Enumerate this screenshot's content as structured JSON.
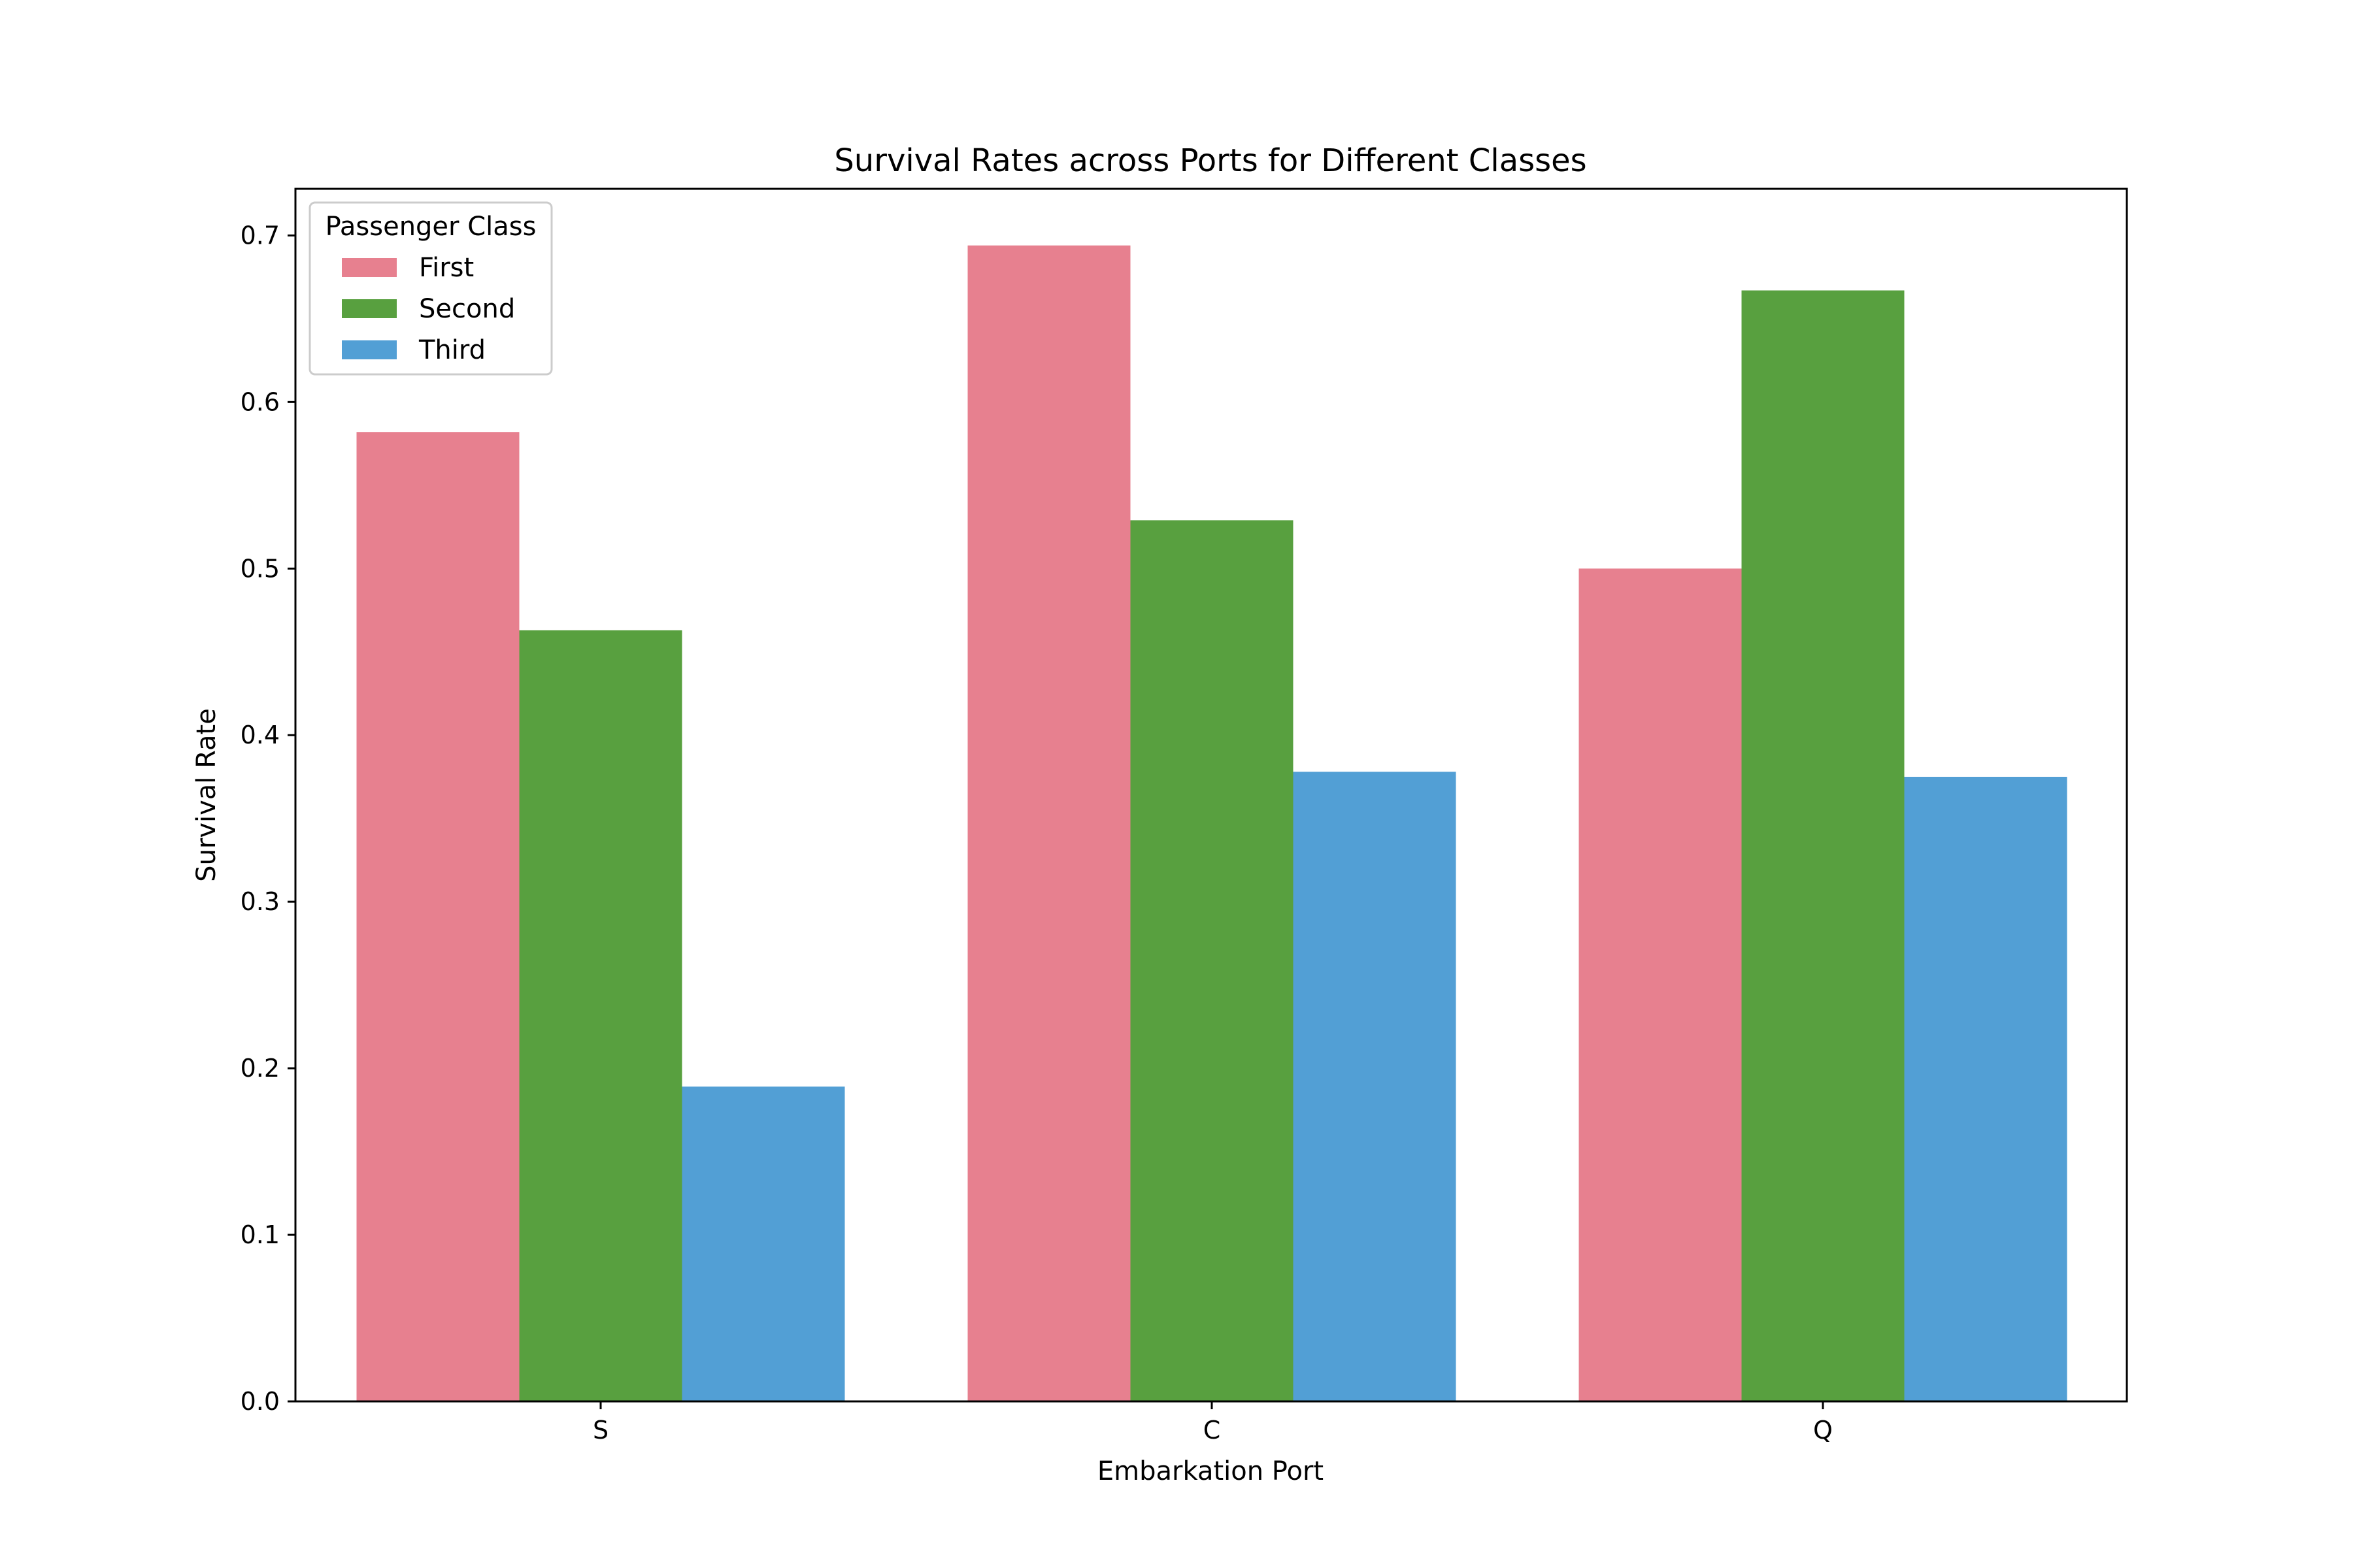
{
  "chart_data": {
    "type": "bar",
    "title": "Survival Rates across Ports for Different Classes",
    "xlabel": "Embarkation Port",
    "ylabel": "Survival Rate",
    "categories": [
      "S",
      "C",
      "Q"
    ],
    "series": [
      {
        "name": "First",
        "color": "#e7808f",
        "values": [
          0.582,
          0.694,
          0.5
        ]
      },
      {
        "name": "Second",
        "color": "#58a03f",
        "values": [
          0.463,
          0.529,
          0.667
        ]
      },
      {
        "name": "Third",
        "color": "#529fd5",
        "values": [
          0.189,
          0.378,
          0.375
        ]
      }
    ],
    "ylim": [
      0,
      0.728
    ],
    "yticks": [
      0.0,
      0.1,
      0.2,
      0.3,
      0.4,
      0.5,
      0.6,
      0.7
    ],
    "ytick_labels": [
      "0.0",
      "0.1",
      "0.2",
      "0.3",
      "0.4",
      "0.5",
      "0.6",
      "0.7"
    ],
    "grid": false,
    "legend": {
      "title": "Passenger Class",
      "placement": "top-left"
    }
  }
}
